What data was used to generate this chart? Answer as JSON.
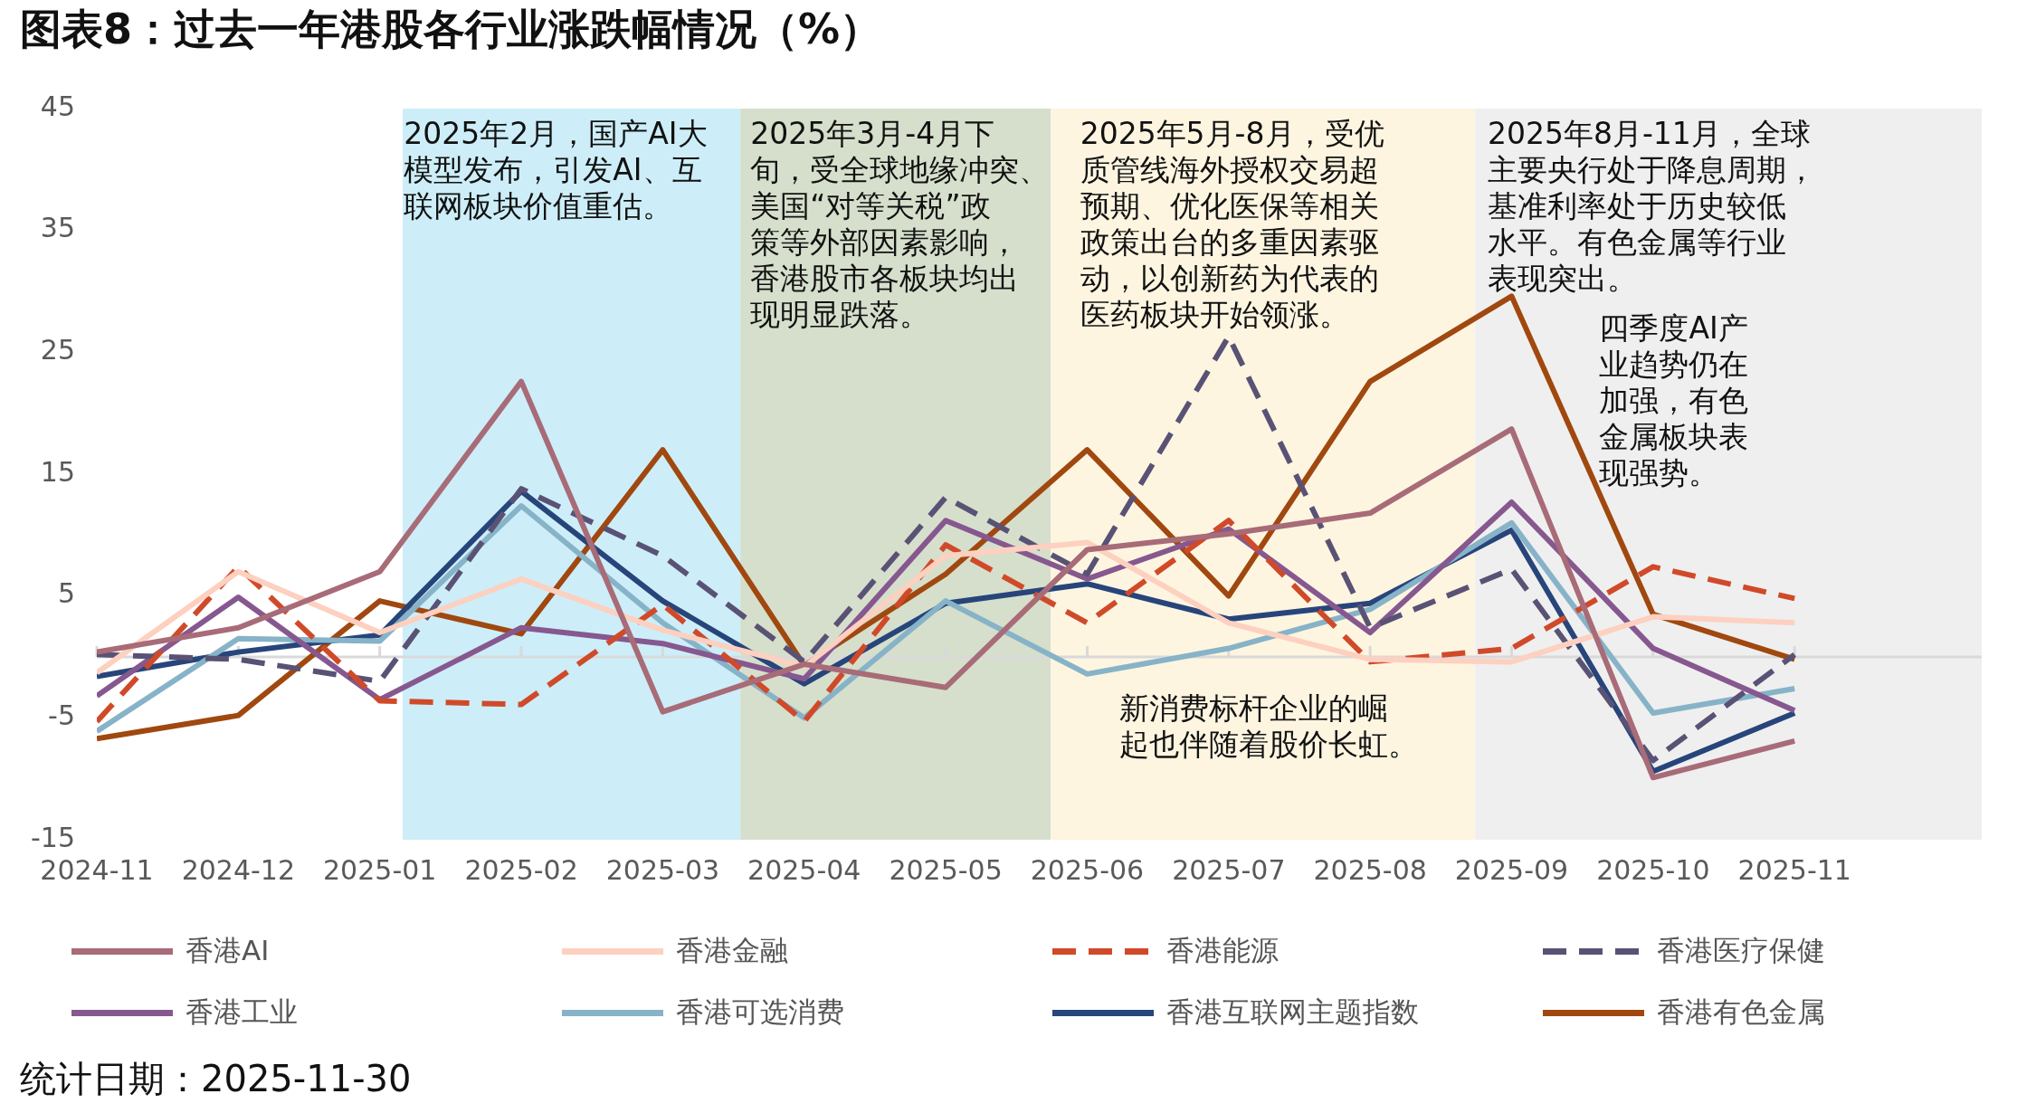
{
  "chart_data": {
    "type": "line",
    "title": "图表8：过去一年港股各行业涨跌幅情况（%）",
    "x": [
      "2024-11",
      "2024-12",
      "2025-01",
      "2025-02",
      "2025-03",
      "2025-04",
      "2025-05",
      "2025-06",
      "2025-07",
      "2025-08",
      "2025-09",
      "2025-10",
      "2025-11"
    ],
    "xlim": [
      "2024-11",
      "2025-12-11"
    ],
    "xticks": [
      "2024-11",
      "2024-12",
      "2025-01",
      "2025-02",
      "2025-03",
      "2025-04",
      "2025-05",
      "2025-06",
      "2025-07",
      "2025-08",
      "2025-09",
      "2025-10",
      "2025-11"
    ],
    "ylim": [
      -15,
      45
    ],
    "yticks": [
      -15,
      -5,
      5,
      15,
      25,
      35,
      45
    ],
    "grid": false,
    "legend": "bottom",
    "marker": "none",
    "series": [
      {
        "name": "香港AI",
        "color": "#a86b78",
        "values": [
          0.4,
          2.4,
          7.0,
          22.6,
          -4.5,
          -0.6,
          -2.5,
          8.8,
          10.1,
          11.8,
          18.7,
          -9.9,
          -6.9
        ]
      },
      {
        "name": "香港金融",
        "color": "#fdd0c0",
        "values": [
          -1.3,
          7.0,
          2.0,
          6.4,
          2.2,
          -0.8,
          8.3,
          9.4,
          2.8,
          -0.2,
          -0.4,
          3.3,
          2.8
        ]
      },
      {
        "name": "香港能源",
        "color": "#d04a2a",
        "line_style": "dashed",
        "values": [
          -5.3,
          7.4,
          -3.6,
          -3.9,
          4.3,
          -5.3,
          9.2,
          2.8,
          11.2,
          -0.4,
          0.7,
          7.4,
          4.8
        ]
      },
      {
        "name": "香港医疗保健",
        "color": "#5a5275",
        "line_style": "dashed",
        "values": [
          0.2,
          -0.2,
          -2.0,
          13.8,
          8.3,
          -0.4,
          13.1,
          6.8,
          26.3,
          2.4,
          7.2,
          -8.5,
          0.2
        ]
      },
      {
        "name": "香港工业",
        "color": "#86588f",
        "values": [
          -3.2,
          4.9,
          -3.5,
          2.4,
          1.1,
          -1.8,
          11.2,
          6.4,
          10.5,
          2.0,
          12.7,
          0.7,
          -4.4
        ]
      },
      {
        "name": "香港可选消费",
        "color": "#87b3c8",
        "values": [
          -6.1,
          1.5,
          1.3,
          12.4,
          2.8,
          -5.0,
          4.6,
          -1.4,
          0.7,
          3.9,
          11.0,
          -4.6,
          -2.6
        ]
      },
      {
        "name": "香港互联网主题指数",
        "color": "#27457a",
        "values": [
          -1.6,
          0.4,
          1.8,
          13.6,
          4.6,
          -2.2,
          4.4,
          6.0,
          3.1,
          4.4,
          10.4,
          -9.4,
          -4.6
        ]
      },
      {
        "name": "香港有色金属",
        "color": "#a0480f",
        "values": [
          -6.7,
          -4.8,
          4.6,
          1.9,
          17.0,
          -0.7,
          6.8,
          17.0,
          5.0,
          22.6,
          29.6,
          3.5,
          -0.2
        ]
      }
    ],
    "bands": [
      {
        "axis": "x",
        "from": "2025-01-06",
        "to": "2025-03-18",
        "color": "#cdeef8"
      },
      {
        "axis": "x",
        "from": "2025-03-18",
        "to": "2025-05-24",
        "color": "#d6dfcc"
      },
      {
        "axis": "x",
        "from": "2025-05-24",
        "to": "2025-08-24",
        "color": "#fdf5e0"
      },
      {
        "axis": "x",
        "from": "2025-08-24",
        "to": "2025-12-11",
        "color": "#efefef"
      }
    ],
    "annotations": [
      "2025年2月，国产AI大模型发布，引发AI、互联网板块价值重估。",
      "2025年3月-4月下旬，受全球地缘冲突、美国“对等关税”政策等外部因素影响，香港股市各板块均出现明显跌落。",
      "2025年5月-8月，受优质管线海外授权交易超预期、优化医保等相关政策出台的多重因素驱动，以创新药为代表的医药板块开始领涨。",
      "2025年8月-11月，全球主要央行处于降息周期，基准利率处于历史较低水平。有色金属等行业表现突出。",
      "四季度AI产业趋势仍在加强，有色金属板块表现强势。",
      "新消费标杆企业的崛起也伴随着股价长虹。",
      "统计日期：2025-11-30"
    ]
  }
}
